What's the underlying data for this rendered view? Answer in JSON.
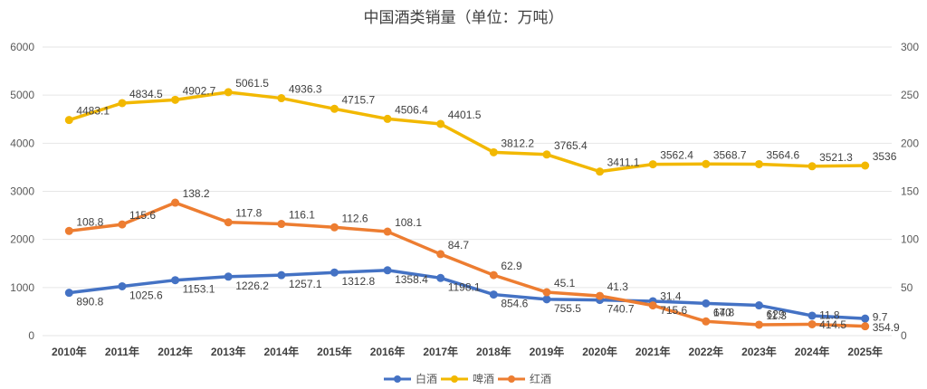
{
  "chart_data": {
    "type": "line",
    "title": "中国酒类销量（单位：万吨）",
    "xlabel": "",
    "ylabel": "",
    "categories": [
      "2010年",
      "2011年",
      "2012年",
      "2013年",
      "2014年",
      "2015年",
      "2016年",
      "2017年",
      "2018年",
      "2019年",
      "2020年",
      "2021年",
      "2022年",
      "2023年",
      "2024年",
      "2025年"
    ],
    "primary_axis": {
      "ylim": [
        0,
        6000
      ],
      "ticks": [
        "0",
        "1000",
        "2000",
        "3000",
        "4000",
        "5000",
        "6000"
      ]
    },
    "secondary_axis": {
      "ylim": [
        0,
        300
      ],
      "ticks": [
        "0",
        "50",
        "100",
        "150",
        "200",
        "250",
        "300"
      ]
    },
    "grid": true,
    "legend_position": "bottom",
    "series": [
      {
        "name": "白酒",
        "axis": "primary",
        "color": "#4472C4",
        "values": [
          890.8,
          1025.6,
          1153.1,
          1226.2,
          1257.1,
          1312.8,
          1358.4,
          1198.1,
          854.6,
          755.5,
          740.7,
          715.6,
          670,
          629,
          414.5,
          354.9
        ],
        "labels": [
          "890.8",
          "1025.6",
          "1153.1",
          "1226.2",
          "1257.1",
          "1312.8",
          "1358.4",
          "1198.1",
          "854.6",
          "755.5",
          "740.7",
          "715.6",
          "670",
          "629",
          "414.5",
          "354.9"
        ]
      },
      {
        "name": "啤酒",
        "axis": "primary",
        "color": "#F2B800",
        "values": [
          4483.1,
          4834.5,
          4902.7,
          5061.5,
          4936.3,
          4715.7,
          4506.4,
          4401.5,
          3812.2,
          3765.4,
          3411.1,
          3562.4,
          3568.7,
          3564.6,
          3521.3,
          3536
        ],
        "labels": [
          "4483.1",
          "4834.5",
          "4902.7",
          "5061.5",
          "4936.3",
          "4715.7",
          "4506.4",
          "4401.5",
          "3812.2",
          "3765.4",
          "3411.1",
          "3562.4",
          "3568.7",
          "3564.6",
          "3521.3",
          "3536"
        ]
      },
      {
        "name": "红酒",
        "axis": "secondary",
        "color": "#ED7D31",
        "values": [
          108.8,
          115.6,
          138.2,
          117.8,
          116.1,
          112.6,
          108.1,
          84.7,
          62.9,
          45.1,
          41.3,
          31.4,
          14.8,
          11.3,
          11.8,
          9.7
        ],
        "labels": [
          "108.8",
          "115.6",
          "138.2",
          "117.8",
          "116.1",
          "112.6",
          "108.1",
          "84.7",
          "62.9",
          "45.1",
          "41.3",
          "31.4",
          "14.8",
          "11.3",
          "11.8",
          "9.7"
        ]
      }
    ]
  }
}
